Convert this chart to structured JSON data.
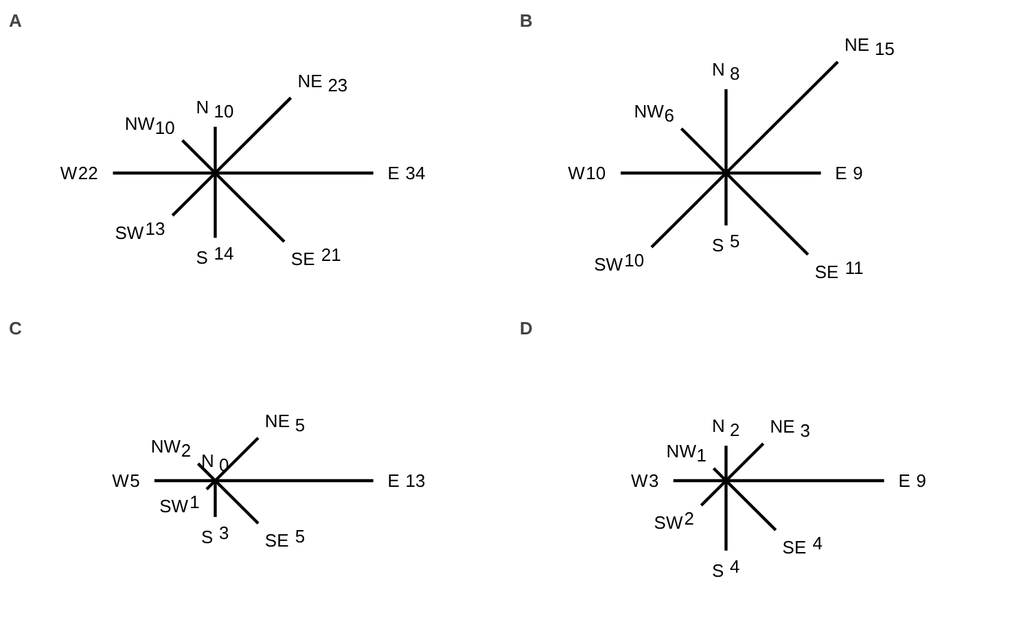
{
  "chart_data": [
    {
      "type": "other",
      "title": "A",
      "categories": [
        "N",
        "NE",
        "E",
        "SE",
        "S",
        "SW",
        "W",
        "NW"
      ],
      "values": [
        10,
        23,
        34,
        21,
        14,
        13,
        22,
        10
      ],
      "data_labels": true,
      "color": "#000000"
    },
    {
      "type": "other",
      "title": "B",
      "categories": [
        "N",
        "NE",
        "E",
        "SE",
        "S",
        "SW",
        "W",
        "NW"
      ],
      "values": [
        8,
        15,
        9,
        11,
        5,
        10,
        10,
        6
      ],
      "data_labels": true,
      "color": "#000000"
    },
    {
      "type": "other",
      "title": "C",
      "categories": [
        "N",
        "NE",
        "E",
        "SE",
        "S",
        "SW",
        "W",
        "NW"
      ],
      "values": [
        0,
        5,
        13,
        5,
        3,
        1,
        5,
        2
      ],
      "data_labels": true,
      "color": "#000000"
    },
    {
      "type": "other",
      "title": "D",
      "categories": [
        "N",
        "NE",
        "E",
        "SE",
        "S",
        "SW",
        "W",
        "NW"
      ],
      "values": [
        2,
        3,
        9,
        4,
        4,
        2,
        3,
        1
      ],
      "data_labels": true,
      "color": "#000000"
    }
  ]
}
